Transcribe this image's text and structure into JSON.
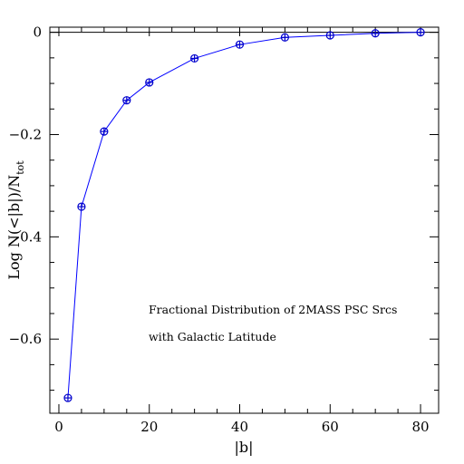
{
  "chart_data": {
    "type": "line",
    "title": "",
    "xlabel": "|b|",
    "ylabel": "Log N(<|b|)/N_tot",
    "ylabel_parts": {
      "main": "Log N(<|b|)/N",
      "sub": "tot"
    },
    "annotation_lines": [
      "Fractional Distribution of 2MASS PSC Srcs",
      "with Galactic Latitude"
    ],
    "xlim": [
      -2,
      84
    ],
    "ylim": [
      -0.745,
      0.01
    ],
    "x_ticks_major": [
      0,
      20,
      40,
      60,
      80
    ],
    "x_tick_labels": [
      "0",
      "20",
      "40",
      "60",
      "80"
    ],
    "x_ticks_minor_step": 5,
    "y_ticks_major": [
      0,
      -0.2,
      -0.4,
      -0.6
    ],
    "y_tick_labels": [
      "0",
      "−0.2",
      "−0.4",
      "−0.6"
    ],
    "y_ticks_minor_step": 0.05,
    "reference_line_y": 0,
    "grid": false,
    "series": [
      {
        "x": [
          2,
          5,
          10,
          15,
          20,
          30,
          40,
          50,
          60,
          70,
          80
        ],
        "y": [
          -0.715,
          -0.341,
          -0.194,
          -0.133,
          -0.098,
          -0.051,
          -0.024,
          -0.01,
          -0.006,
          -0.002,
          0.0
        ],
        "line_color": "#0000ff",
        "marker": "circle-plus",
        "marker_color": "#0000cc"
      }
    ]
  }
}
